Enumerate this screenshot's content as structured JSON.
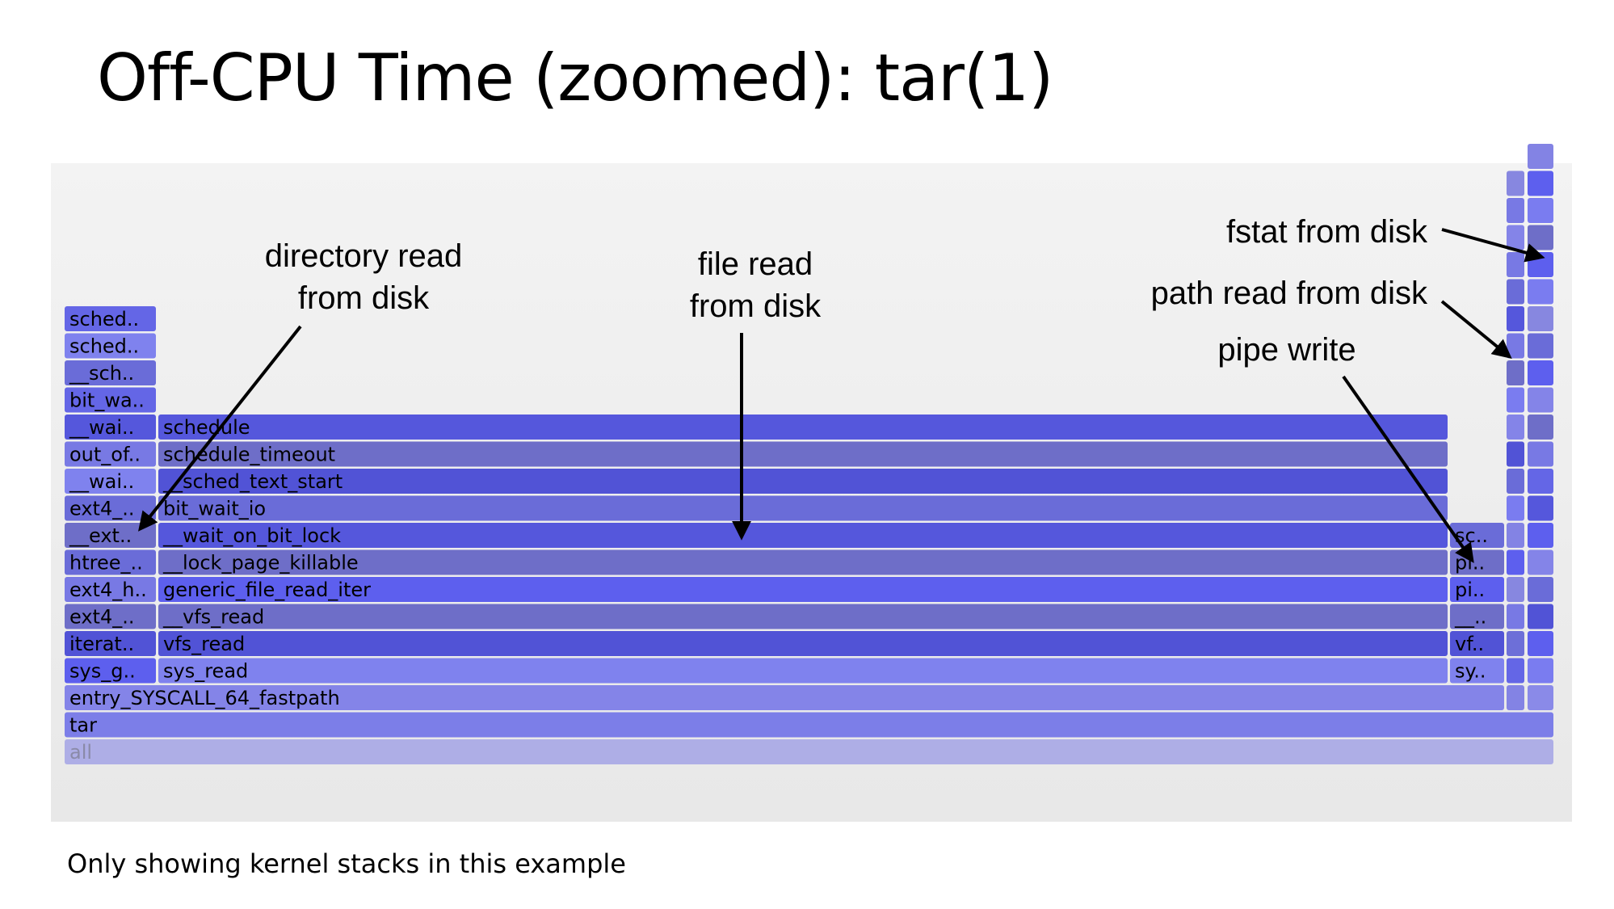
{
  "slide": {
    "title": "Off-CPU Time (zoomed): tar(1)",
    "footnote": "Only showing kernel stacks in this example"
  },
  "annotations": {
    "dir_read_line1": "directory read",
    "dir_read_line2": "from disk",
    "file_read_line1": "file read",
    "file_read_line2": "from disk",
    "fstat": "fstat from disk",
    "path_read": "path read from disk",
    "pipe_write": "pipe write"
  },
  "flamegraph": {
    "colors": [
      "#5557dc",
      "#6e6ec8",
      "#5153d6",
      "#6a6cd8",
      "#7f82ee",
      "#6466e6",
      "#7879e4",
      "#5d5fee",
      "#8484e8"
    ],
    "root": "all",
    "process": "tar",
    "main_syscall_entry": "entry_SYSCALL_64_fastpath",
    "columns": {
      "dir_read": [
        "sys_g..",
        "iterat..",
        "ext4_..",
        "ext4_h..",
        "htree_..",
        "__ext..",
        "ext4_..",
        "__wai..",
        "out_of..",
        "__wai..",
        "bit_wa..",
        "__sch..",
        "sched..",
        "sched.."
      ],
      "file_read": [
        "sys_read",
        "vfs_read",
        "__vfs_read",
        "generic_file_read_iter",
        "__lock_page_killable",
        "__wait_on_bit_lock",
        "bit_wait_io",
        "__sched_text_start",
        "schedule_timeout",
        "schedule"
      ],
      "pipe_write": [
        "sy..",
        "vf..",
        "__..",
        "pi..",
        "pi..",
        "sc.."
      ]
    }
  }
}
